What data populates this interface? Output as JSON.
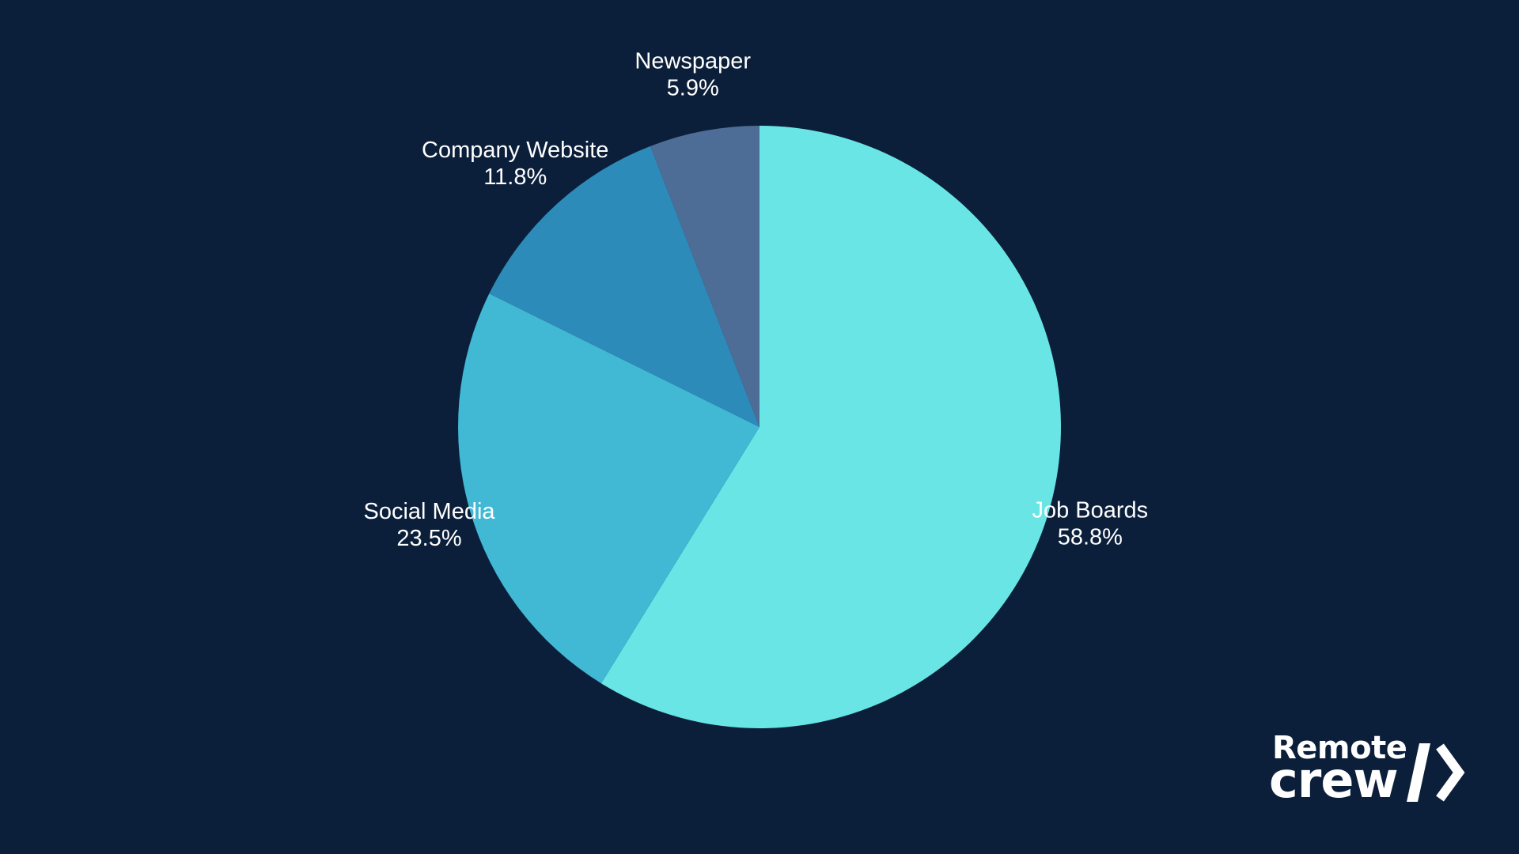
{
  "chart_data": {
    "type": "pie",
    "start": "top",
    "direction": "clockwise",
    "slices": [
      {
        "label": "Job Boards",
        "value": 58.8,
        "display": "58.8%",
        "color": "#6ae5e5"
      },
      {
        "label": "Social Media",
        "value": 23.5,
        "display": "23.5%",
        "color": "#41b8d4"
      },
      {
        "label": "Company Website",
        "value": 11.8,
        "display": "11.8%",
        "color": "#2d8bba"
      },
      {
        "label": "Newspaper",
        "value": 5.9,
        "display": "5.9%",
        "color": "#4e6d96"
      }
    ]
  },
  "logo": {
    "line1": "Remote",
    "line2": "crew",
    "mark_icon": "slash-chevron-icon",
    "color": "#ffffff"
  },
  "background_color": "#0c1f3a"
}
